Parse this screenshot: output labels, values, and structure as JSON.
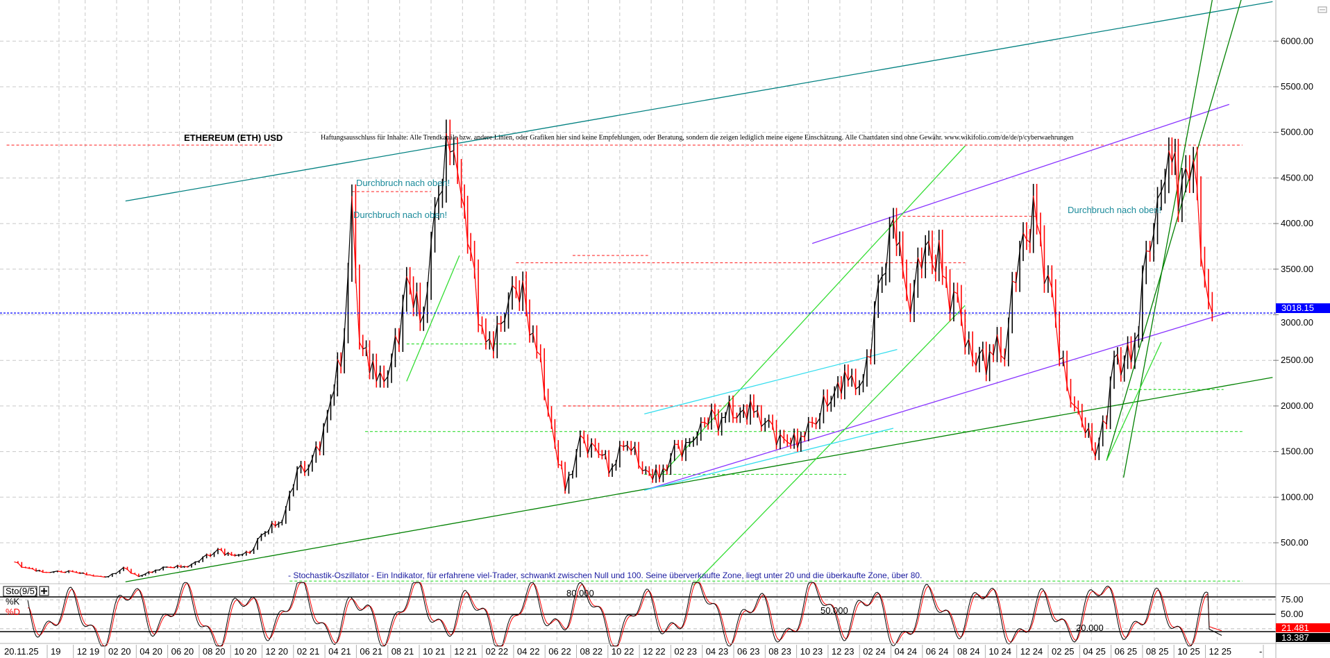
{
  "chart_data": {
    "type": "line",
    "title": "ETHEREUM (ETH) USD",
    "disclaimer": "Haftungsausschluss für Inhalte: Alle Trendkanäle bzw. andere Linien, oder Grafiken hier sind keine Empfehlungen, oder Beratung, sondern die zeigen lediglich meine eigene Einschätzung. Alle Chartdaten sind ohne Gewähr.  www.wikifolio.com/de/de/p/cyberwaehrungen",
    "annotations": [
      "Durchbruch nach oben!",
      "Durchbruch nach oben!",
      "Durchbruch nach oben!"
    ],
    "stochastic_note": "- Stochastik-Oszillator - Ein Indikator, für erfahrene viel-Trader, schwankt zwischen Null und 100. Seine überverkaufte Zone, liegt unter 20 und die überkaufte Zone, über 80.",
    "y_axis": {
      "ticks": [
        "500.00",
        "1000.00",
        "1500.00",
        "2000.00",
        "2500.00",
        "3000.00",
        "3500.00",
        "4000.00",
        "4500.00",
        "5000.00",
        "5500.00",
        "6000.00"
      ],
      "range": [
        0,
        6500
      ],
      "grid": true
    },
    "x_axis": {
      "ticks": [
        "20.11.25",
        "19",
        "12 19",
        "02 20",
        "04 20",
        "06 20",
        "08 20",
        "10 20",
        "12 20",
        "02 21",
        "04 21",
        "06 21",
        "08 21",
        "10 21",
        "12 21",
        "02 22",
        "04 22",
        "06 22",
        "08 22",
        "10 22",
        "12 22",
        "02 23",
        "04 23",
        "06 23",
        "08 23",
        "10 23",
        "12 23",
        "02 24",
        "04 24",
        "06 24",
        "08 24",
        "10 24",
        "12 24",
        "02 25",
        "04 25",
        "06 25",
        "08 25",
        "10 25",
        "12 25",
        "-"
      ],
      "grid": true
    },
    "last_price": "3018.15",
    "colors": {
      "up": "#000000",
      "down": "#ff0000",
      "last_price_line": "#0000ff",
      "trend_teal": "#008080",
      "trend_green": "#008000",
      "trend_lime": "#33dd33",
      "trend_purple": "#8833ff",
      "trend_cyan": "#33ddee"
    },
    "price_series": {
      "name": "ETH USD",
      "dates": [
        2019.54,
        2019.62,
        2019.71,
        2019.79,
        2019.87,
        2019.96,
        2020.04,
        2020.12,
        2020.2,
        2020.29,
        2020.37,
        2020.46,
        2020.54,
        2020.62,
        2020.71,
        2020.79,
        2020.87,
        2020.96,
        2021.04,
        2021.12,
        2021.2,
        2021.29,
        2021.33,
        2021.37,
        2021.46,
        2021.54,
        2021.62,
        2021.71,
        2021.79,
        2021.87,
        2021.91,
        2021.96,
        2022.04,
        2022.12,
        2022.2,
        2022.29,
        2022.37,
        2022.46,
        2022.54,
        2022.62,
        2022.71,
        2022.79,
        2022.87,
        2022.96,
        2023.04,
        2023.12,
        2023.2,
        2023.29,
        2023.37,
        2023.46,
        2023.54,
        2023.62,
        2023.71,
        2023.79,
        2023.87,
        2023.96,
        2024.04,
        2024.12,
        2024.2,
        2024.25,
        2024.29,
        2024.37,
        2024.46,
        2024.54,
        2024.62,
        2024.71,
        2024.79,
        2024.87,
        2024.96,
        2025.04,
        2025.12,
        2025.2,
        2025.27,
        2025.33,
        2025.37,
        2025.46,
        2025.54,
        2025.62,
        2025.66,
        2025.71,
        2025.79,
        2025.85,
        2025.89
      ],
      "values": [
        290,
        220,
        175,
        180,
        175,
        135,
        130,
        230,
        130,
        200,
        230,
        235,
        340,
        430,
        360,
        390,
        610,
        730,
        1300,
        1420,
        1900,
        2770,
        4300,
        2700,
        2270,
        2500,
        3420,
        3000,
        4300,
        4800,
        4300,
        3700,
        2700,
        2900,
        3280,
        2800,
        1940,
        1070,
        1680,
        1550,
        1330,
        1570,
        1290,
        1200,
        1580,
        1600,
        1820,
        1870,
        1870,
        1930,
        1850,
        1640,
        1670,
        1800,
        2050,
        2280,
        2280,
        3340,
        4050,
        3500,
        3010,
        3760,
        3430,
        3230,
        2510,
        2600,
        2510,
        3700,
        4000,
        3290,
        2230,
        1820,
        1450,
        1800,
        2530,
        2480,
        3700,
        4350,
        4800,
        4140,
        4700,
        3400,
        3018.15
      ]
    },
    "trendlines": [
      {
        "color": "trend_teal",
        "from": [
          2020.13,
          4247
        ],
        "to": [
          2026.21,
          6433
        ]
      },
      {
        "color": "trend_green",
        "from": [
          2020.13,
          72
        ],
        "to": [
          2026.21,
          2313
        ]
      },
      {
        "color": "trend_purple",
        "from": [
          2023.77,
          3782
        ],
        "to": [
          2025.98,
          5307
        ]
      },
      {
        "color": "trend_purple",
        "from": [
          2022.88,
          1076
        ],
        "to": [
          2025.98,
          3029
        ]
      },
      {
        "color": "trend_lime",
        "from": [
          2022.97,
          1244
        ],
        "to": [
          2024.58,
          4851
        ]
      },
      {
        "color": "trend_lime",
        "from": [
          2023.14,
          36
        ],
        "to": [
          2024.58,
          3102
        ]
      },
      {
        "color": "trend_cyan",
        "from": [
          2022.88,
          1913
        ],
        "to": [
          2024.22,
          2619
        ]
      },
      {
        "color": "trend_cyan",
        "from": [
          2022.88,
          1076
        ],
        "to": [
          2024.2,
          1756
        ]
      },
      {
        "color": "trend_green",
        "from": [
          2025.42,
          1215
        ],
        "to": [
          2025.89,
          6451
        ]
      },
      {
        "color": "trend_green",
        "from": [
          2025.33,
          1400
        ],
        "to": [
          2026.05,
          6500
        ]
      },
      {
        "color": "trend_lime",
        "from": [
          2025.33,
          1400
        ],
        "to": [
          2025.62,
          2700
        ]
      },
      {
        "color": "trend_lime",
        "from": [
          2021.62,
          2270
        ],
        "to": [
          2021.9,
          3650
        ]
      }
    ],
    "levels": [
      {
        "color": "#ff3333",
        "price": 4860,
        "from": 2019.5,
        "to": 2020.9
      },
      {
        "color": "#ff3333",
        "price": 4860,
        "from": 2021.9,
        "to": 2026.05
      },
      {
        "color": "#ff3333",
        "price": 4350,
        "from": 2021.33,
        "to": 2021.75
      },
      {
        "color": "#ff3333",
        "price": 4080,
        "from": 2024.25,
        "to": 2024.96
      },
      {
        "color": "#ff3333",
        "price": 3570,
        "from": 2022.2,
        "to": 2024.58
      },
      {
        "color": "#ff3333",
        "price": 3650,
        "from": 2022.5,
        "to": 2022.9
      },
      {
        "color": "#ff3333",
        "price": 2000,
        "from": 2022.45,
        "to": 2023.5
      },
      {
        "color": "#33dd33",
        "price": 1720,
        "from": 2021.4,
        "to": 2026.05
      },
      {
        "color": "#33dd33",
        "price": 2680,
        "from": 2021.62,
        "to": 2022.2
      },
      {
        "color": "#33dd33",
        "price": 1250,
        "from": 2022.88,
        "to": 2023.95
      },
      {
        "color": "#33dd33",
        "price": 2180,
        "from": 2025.45,
        "to": 2025.95
      },
      {
        "color": "#33dd33",
        "price": 80,
        "from": 2021.0,
        "to": 2026.05
      }
    ],
    "stochastic": {
      "label": "Sto(9/5)",
      "k_label": "%K",
      "d_label": "%D",
      "level_labels": [
        "80.000",
        "50.000",
        "20.000"
      ],
      "y_ticks": [
        "75.00",
        "50.00"
      ],
      "levels": [
        80,
        50,
        20
      ],
      "range": [
        0,
        100
      ],
      "last_d": "21.481",
      "last_k": "13.387"
    }
  }
}
